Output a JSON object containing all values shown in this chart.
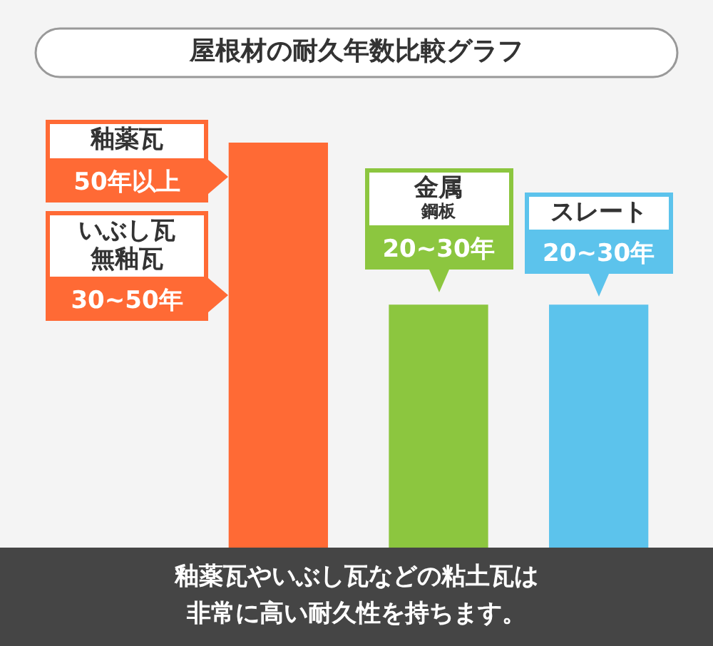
{
  "chart_data": {
    "type": "bar",
    "title": "屋根材の耐久年数比較グラフ",
    "categories": [
      null,
      null,
      null
    ],
    "values": [
      50,
      30,
      30
    ],
    "colors": [
      "#ff6a35",
      "#8cc63f",
      "#5cc3ec"
    ],
    "value_labels": [
      null,
      "20~30年",
      "20~30年"
    ],
    "annotations": [
      "釉薬瓦",
      "50年以上",
      "いぶし瓦",
      "無釉瓦",
      "30~50年",
      "金属",
      "鋼板",
      "スレート",
      "釉薬瓦やいぶし瓦などの粘土瓦は非常に高い耐久性を持ちます。"
    ]
  }
}
